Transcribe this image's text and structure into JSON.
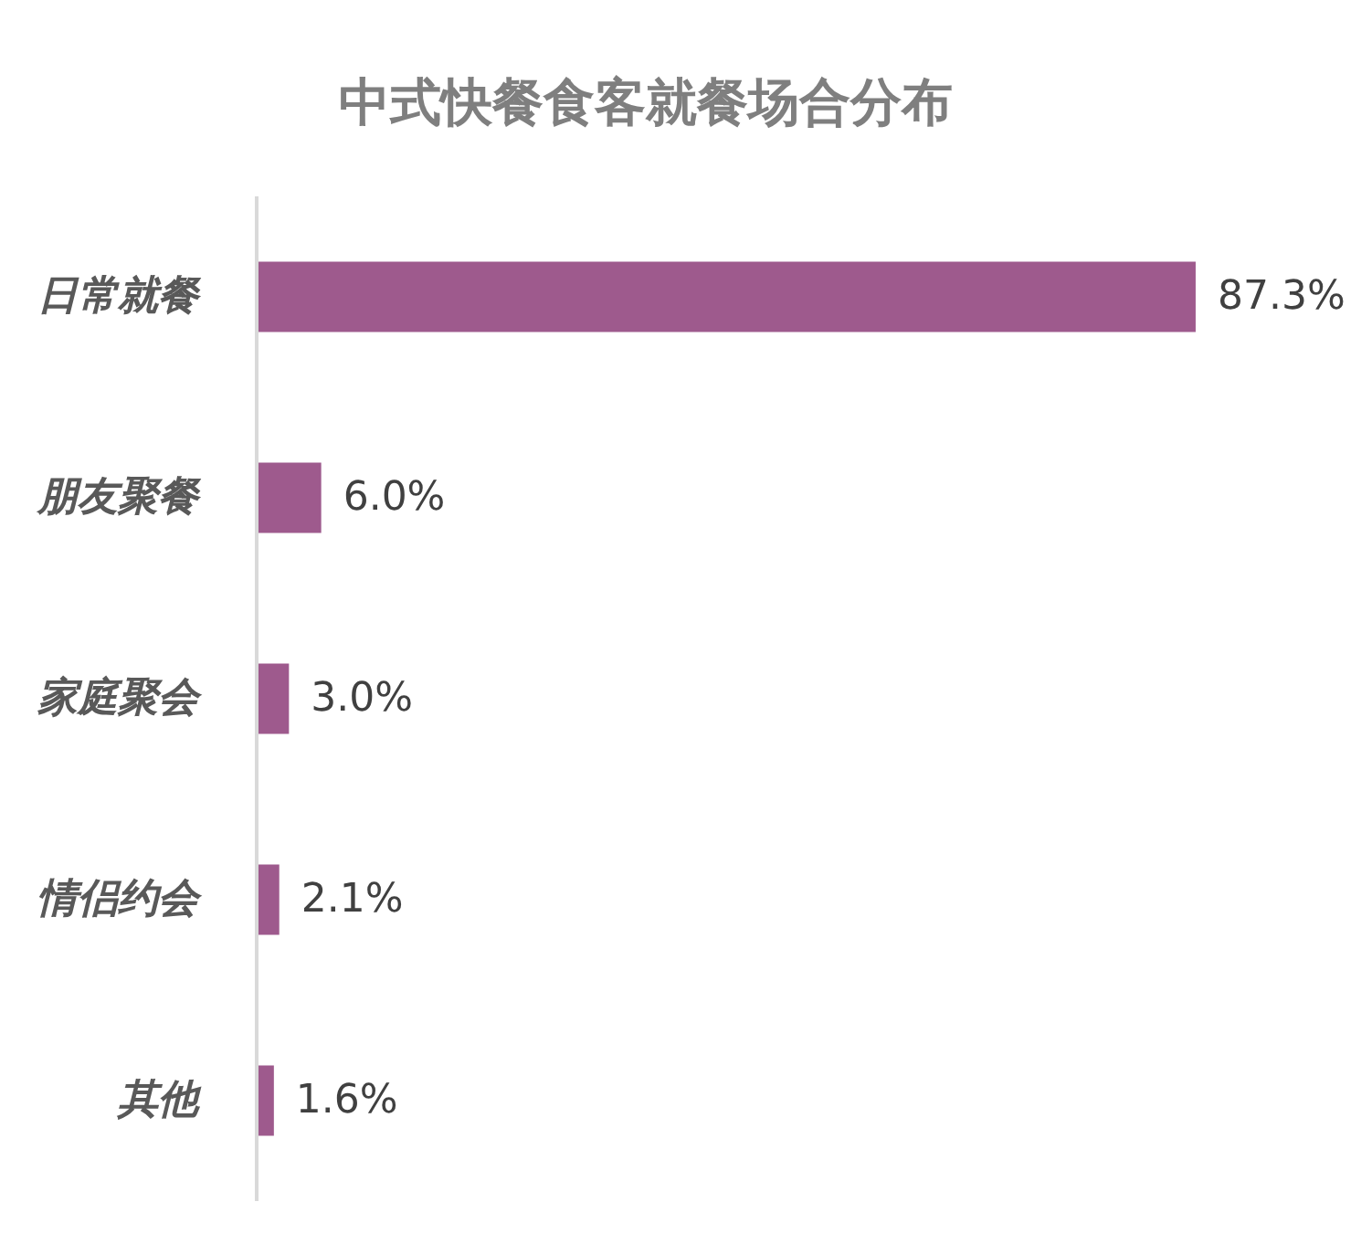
{
  "chart_data": {
    "type": "bar",
    "title": "中式快餐食客就餐场合分布",
    "orientation": "horizontal",
    "categories": [
      "日常就餐",
      "朋友聚餐",
      "家庭聚会",
      "情侣约会",
      "其他"
    ],
    "values": [
      87.3,
      6.0,
      3.0,
      2.1,
      1.6
    ],
    "color": "#9e5a8d",
    "value_labels": [
      "87.3%",
      "6.0%",
      "3.0%",
      "2.1%",
      "1.6%"
    ],
    "tick_labels": "y"
  }
}
